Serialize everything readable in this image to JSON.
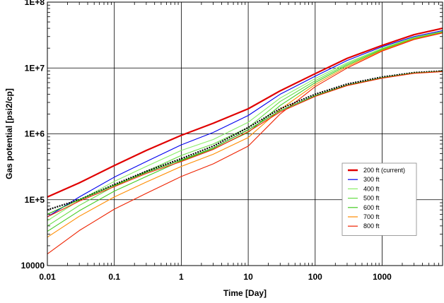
{
  "chart_data": {
    "type": "line",
    "xlabel": "Time [Day]",
    "ylabel": "Gas potential [psi2/cp]",
    "xscale": "log",
    "yscale": "log",
    "xlim": [
      0.01,
      8000
    ],
    "ylim": [
      10000,
      100000000
    ],
    "x_ticks": [
      "0.01",
      "0.1",
      "1",
      "10",
      "100",
      "1000"
    ],
    "y_ticks": [
      "10000",
      "1E+5",
      "1E+6",
      "1E+7",
      "1E+8"
    ],
    "grid": true,
    "legend_position": "right",
    "series": [
      {
        "name": "200 ft (current)",
        "color": "#e00000",
        "x": [
          0.01,
          0.03,
          0.1,
          0.3,
          1,
          3,
          10,
          30,
          100,
          300,
          1000,
          3000,
          8000
        ],
        "y": [
          110000,
          180000,
          330000,
          560000,
          950000,
          1450000,
          2400000,
          4500000,
          8200000,
          14000000,
          22000000,
          32000000,
          40000000
        ]
      },
      {
        "name": "300 ft",
        "color": "#0000ee",
        "x": [
          0.01,
          0.03,
          0.1,
          0.3,
          1,
          3,
          10,
          30,
          100,
          300,
          1000,
          3000,
          8000
        ],
        "y": [
          55000,
          110000,
          220000,
          380000,
          680000,
          1050000,
          1900000,
          4000000,
          7500000,
          13000000,
          21000000,
          30000000,
          37000000
        ]
      },
      {
        "name": "400 ft",
        "color": "#88ee66",
        "x": [
          0.01,
          0.03,
          0.1,
          0.3,
          1,
          3,
          10,
          30,
          100,
          300,
          1000,
          3000,
          8000
        ],
        "y": [
          48000,
          98000,
          190000,
          320000,
          560000,
          820000,
          1500000,
          3500000,
          6900000,
          12000000,
          20000000,
          29000000,
          36000000
        ]
      },
      {
        "name": "500 ft",
        "color": "#66dd44",
        "x": [
          0.01,
          0.03,
          0.1,
          0.3,
          1,
          3,
          10,
          30,
          100,
          300,
          1000,
          3000,
          8000
        ],
        "y": [
          40000,
          82000,
          160000,
          270000,
          470000,
          700000,
          1250000,
          3100000,
          6400000,
          11500000,
          19500000,
          28500000,
          35500000
        ]
      },
      {
        "name": "600 ft",
        "color": "#44cc22",
        "x": [
          0.01,
          0.03,
          0.1,
          0.3,
          1,
          3,
          10,
          30,
          100,
          300,
          1000,
          3000,
          8000
        ],
        "y": [
          33000,
          68000,
          135000,
          225000,
          390000,
          590000,
          1050000,
          2700000,
          6000000,
          11000000,
          19000000,
          28000000,
          35000000
        ]
      },
      {
        "name": "700 ft",
        "color": "#ff8c00",
        "x": [
          0.01,
          0.03,
          0.1,
          0.3,
          1,
          3,
          10,
          30,
          100,
          300,
          1000,
          3000,
          8000
        ],
        "y": [
          27000,
          56000,
          110000,
          185000,
          320000,
          490000,
          880000,
          2350000,
          5600000,
          10500000,
          18500000,
          27500000,
          34500000
        ]
      },
      {
        "name": "800 ft",
        "color": "#ee2200",
        "x": [
          0.01,
          0.03,
          0.1,
          0.3,
          1,
          3,
          10,
          30,
          100,
          300,
          1000,
          3000,
          8000
        ],
        "y": [
          15000,
          34000,
          72000,
          125000,
          225000,
          350000,
          650000,
          2000000,
          5200000,
          10000000,
          18000000,
          27000000,
          34000000
        ]
      },
      {
        "name": "",
        "color": "#000000",
        "marker": "dots",
        "x": [
          0.01,
          0.03,
          0.1,
          0.3,
          1,
          3,
          10,
          30,
          100,
          300,
          1000,
          3000,
          8000
        ],
        "y": [
          70000,
          100000,
          170000,
          270000,
          420000,
          650000,
          1250000,
          2400000,
          4000000,
          5700000,
          7300000,
          8500000,
          9000000
        ]
      },
      {
        "name": "",
        "color": "#22aa00",
        "x": [
          0.01,
          0.03,
          0.1,
          0.3,
          1,
          3,
          10,
          30,
          100,
          300,
          1000,
          3000,
          8000
        ],
        "y": [
          60000,
          100000,
          165000,
          260000,
          400000,
          610000,
          1150000,
          2250000,
          3800000,
          5500000,
          7100000,
          8400000,
          8900000
        ]
      },
      {
        "name": "",
        "color": "#ee2200",
        "x": [
          0.01,
          0.03,
          0.1,
          0.3,
          1,
          3,
          10,
          30,
          100,
          300,
          1000,
          3000,
          8000
        ],
        "y": [
          55000,
          95000,
          158000,
          250000,
          380000,
          580000,
          1080000,
          2150000,
          3700000,
          5400000,
          7000000,
          8300000,
          8800000
        ]
      }
    ]
  }
}
